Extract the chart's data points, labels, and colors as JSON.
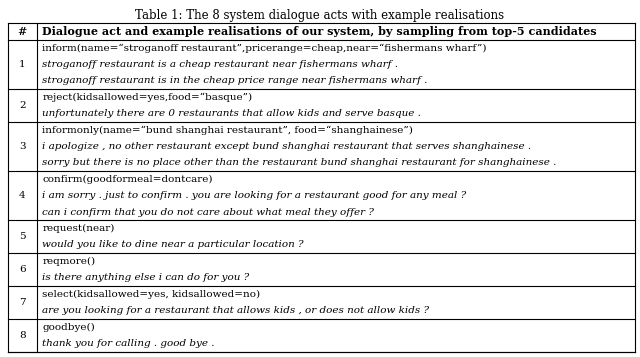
{
  "title": "Table 1: The 8 system dialogue acts with example realisations",
  "col_header_num": "#",
  "col_header_main": "Dialogue act and example realisations of our system, by sampling from top-5 candidates",
  "rows": [
    {
      "num": "1",
      "act": "inform(name=“stroganoff restaurant”,pricerange=cheap,near=“fishermans wharf”)",
      "examples": [
        "stroganoff restaurant is a cheap restaurant near fishermans wharf .",
        "stroganoff restaurant is in the cheap price range near fishermans wharf ."
      ]
    },
    {
      "num": "2",
      "act": "reject(kidsallowed=yes,food=“basque”)",
      "examples": [
        "unfortunately there are 0 restaurants that allow kids and serve basque ."
      ]
    },
    {
      "num": "3",
      "act": "informonly(name=“bund shanghai restaurant”, food=“shanghainese”)",
      "examples": [
        "i apologize , no other restaurant except bund shanghai restaurant that serves shanghainese .",
        "sorry but there is no place other than the restaurant bund shanghai restaurant for shanghainese ."
      ]
    },
    {
      "num": "4",
      "act": "confirm(goodformeal=dontcare)",
      "examples": [
        "i am sorry . just to confirm . you are looking for a restaurant good for any meal ?",
        "can i confirm that you do not care about what meal they offer ?"
      ]
    },
    {
      "num": "5",
      "act": "request(near)",
      "examples": [
        "would you like to dine near a particular location ?"
      ]
    },
    {
      "num": "6",
      "act": "reqmore()",
      "examples": [
        "is there anything else i can do for you ?"
      ]
    },
    {
      "num": "7",
      "act": "select(kidsallowed=yes, kidsallowed=no)",
      "examples": [
        "are you looking for a restaurant that allows kids , or does not allow kids ?"
      ]
    },
    {
      "num": "8",
      "act": "goodbye()",
      "examples": [
        "thank you for calling . good bye ."
      ]
    }
  ],
  "bg_color": "#ffffff",
  "border_color": "#000000",
  "text_color": "#000000",
  "title_fontsize": 8.5,
  "header_fontsize": 8.0,
  "cell_fontsize": 7.5,
  "figsize": [
    6.4,
    3.57
  ],
  "dpi": 100
}
